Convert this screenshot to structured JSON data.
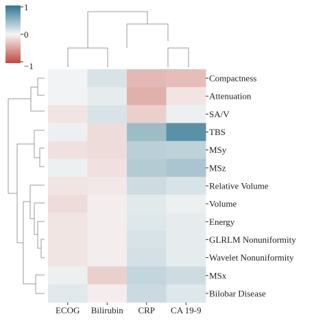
{
  "chart_data": {
    "type": "heatmap",
    "title": "",
    "xlabel": "",
    "ylabel": "",
    "x": [
      "ECOG",
      "Bilirubin",
      "CRP",
      "CA 19-9"
    ],
    "y": [
      "Compactness",
      "Attenuation",
      "SA/V",
      "TBS",
      "MSy",
      "MSz",
      "Relative Volume",
      "Volume",
      "Energy",
      "GLRLM Nonuniformity",
      "Wavelet Nonuniformity",
      "MSx",
      "Bilobar Disease"
    ],
    "values": [
      [
        0.02,
        0.15,
        -0.35,
        -0.32
      ],
      [
        0.02,
        0.08,
        -0.4,
        -0.1
      ],
      [
        -0.1,
        0.15,
        -0.22,
        0.05
      ],
      [
        0.05,
        -0.15,
        0.45,
        0.78
      ],
      [
        -0.12,
        -0.15,
        0.3,
        0.28
      ],
      [
        0.05,
        -0.12,
        0.33,
        0.38
      ],
      [
        -0.1,
        -0.08,
        0.2,
        0.15
      ],
      [
        -0.15,
        -0.05,
        0.1,
        0.05
      ],
      [
        -0.1,
        -0.05,
        0.12,
        0.08
      ],
      [
        -0.1,
        -0.05,
        0.15,
        0.08
      ],
      [
        -0.1,
        -0.05,
        0.17,
        0.08
      ],
      [
        0.05,
        -0.22,
        0.25,
        0.2
      ],
      [
        0.1,
        -0.05,
        0.22,
        0.12
      ]
    ],
    "colorbar": {
      "min": -1,
      "max": 1,
      "ticks": [
        "1",
        "0",
        "−1"
      ],
      "low_color": "#c0483b",
      "mid_color": "#f6f6f6",
      "high_color": "#2e7590"
    },
    "column_dendrogram": true,
    "row_dendrogram": true,
    "grid": false
  }
}
